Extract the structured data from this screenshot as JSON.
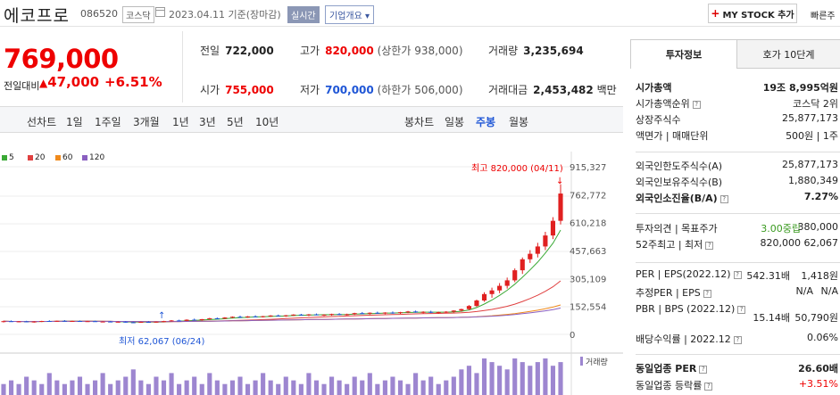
{
  "header": {
    "name": "에코프로",
    "code": "086520",
    "market": "코스닥",
    "date": "2023.04.11 기준(장마감)",
    "realtime": "실시간",
    "company_overview": "기업개요",
    "mystock": "MY STOCK 추가",
    "quick": "빠른주"
  },
  "price": {
    "current": "769,000",
    "change_label": "전일대비",
    "change": "47,000",
    "change_pct": "+6.51%",
    "prev_close_label": "전일",
    "prev_close": "722,000",
    "high_label": "고가",
    "high": "820,000",
    "upper_limit": "(상한가 938,000)",
    "volume_label": "거래량",
    "volume": "3,235,694",
    "open_label": "시가",
    "open": "755,000",
    "low_label": "저가",
    "low": "700,000",
    "lower_limit": "(하한가 506,000)",
    "amount_label": "거래대금",
    "amount": "2,453,482",
    "amount_unit": "백만"
  },
  "toolbar": {
    "line_chart": "선차트",
    "periods": [
      "1일",
      "1주일",
      "3개월",
      "1년",
      "3년",
      "5년",
      "10년"
    ],
    "candle_chart": "봉차트",
    "candle_periods": [
      "일봉",
      "주봉",
      "월봉"
    ],
    "candle_selected": 1
  },
  "right_panel": {
    "tab_active": "투자정보",
    "tab_inactive": "호가 10단계",
    "market_cap_label": "시가총액",
    "market_cap": "19조 8,995억원",
    "rank_label": "시가총액순위",
    "rank": "코스닥 2위",
    "shares_label": "상장주식수",
    "shares": "25,877,173",
    "par_label": "액면가 | 매매단위",
    "par": "500원 | 1주",
    "foreign_limit_label": "외국인한도주식수(A)",
    "foreign_limit": "25,877,173",
    "foreign_hold_label": "외국인보유주식수(B)",
    "foreign_hold": "1,880,349",
    "foreign_ratio_label": "외국인소진율(B/A)",
    "foreign_ratio": "7.27%",
    "opinion_label": "투자의견 | 목표주가",
    "opinion": "3.00중립",
    "target": "380,000",
    "w52_label": "52주최고 | 최저",
    "w52_high": "820,000",
    "w52_low": "62,067",
    "per_label": "PER | EPS(2022.12)",
    "per": "542.31배",
    "eps": "1,418원",
    "est_per_label": "추정PER | EPS",
    "est_per": "N/A",
    "est_eps": "N/A",
    "pbr_label": "PBR | BPS (2022.12)",
    "pbr": "15.14배",
    "bps": "50,790원",
    "dividend_label": "배당수익률 | 2022.12",
    "dividend": "0.06%",
    "industry_per_label": "동일업종 PER",
    "industry_per": "26.60배",
    "industry_change_label": "동일업종 등락률",
    "industry_change": "+3.51%"
  },
  "chart_data": {
    "type": "candlestick",
    "period": "weekly",
    "y_ticks": [
      "915,327",
      "762,772",
      "610,218",
      "457,663",
      "305,109",
      "152,554",
      "0"
    ],
    "ylim": [
      0,
      915327
    ],
    "ma_legend": [
      {
        "name": "5",
        "color": "#3aa935"
      },
      {
        "name": "20",
        "color": "#e04040"
      },
      {
        "name": "60",
        "color": "#f08a1c"
      },
      {
        "name": "120",
        "color": "#8a5fc0"
      }
    ],
    "max_label": "최고 820,000 (04/11)",
    "min_label": "최저 62,067 (06/24)",
    "volume_label": "거래량",
    "candles": [
      [
        70000,
        75000,
        65000,
        72000
      ],
      [
        72000,
        76000,
        68000,
        69000
      ],
      [
        69000,
        73000,
        66000,
        71000
      ],
      [
        71000,
        74000,
        67000,
        68000
      ],
      [
        68000,
        72000,
        64000,
        70000
      ],
      [
        70000,
        74000,
        67000,
        73000
      ],
      [
        73000,
        77000,
        69000,
        71000
      ],
      [
        71000,
        75000,
        68000,
        74000
      ],
      [
        74000,
        78000,
        70000,
        72000
      ],
      [
        72000,
        75000,
        69000,
        73000
      ],
      [
        73000,
        76000,
        70000,
        71000
      ],
      [
        71000,
        74000,
        68000,
        72000
      ],
      [
        72000,
        75000,
        68000,
        69000
      ],
      [
        69000,
        72000,
        66000,
        70000
      ],
      [
        70000,
        73000,
        67000,
        68000
      ],
      [
        68000,
        71000,
        65000,
        69000
      ],
      [
        69000,
        72000,
        64000,
        66000
      ],
      [
        66000,
        69000,
        62067,
        64000
      ],
      [
        64000,
        70000,
        63000,
        68000
      ],
      [
        68000,
        72000,
        65000,
        66000
      ],
      [
        66000,
        70000,
        64000,
        69000
      ],
      [
        69000,
        74000,
        67000,
        72000
      ],
      [
        72000,
        78000,
        70000,
        76000
      ],
      [
        76000,
        80000,
        72000,
        74000
      ],
      [
        74000,
        82000,
        72000,
        80000
      ],
      [
        80000,
        86000,
        76000,
        78000
      ],
      [
        78000,
        84000,
        75000,
        83000
      ],
      [
        83000,
        90000,
        80000,
        88000
      ],
      [
        88000,
        92000,
        83000,
        86000
      ],
      [
        86000,
        94000,
        84000,
        92000
      ],
      [
        92000,
        98000,
        88000,
        96000
      ],
      [
        96000,
        102000,
        90000,
        94000
      ],
      [
        94000,
        100000,
        90000,
        98000
      ],
      [
        98000,
        104000,
        93000,
        96000
      ],
      [
        96000,
        101000,
        92000,
        99000
      ],
      [
        99000,
        105000,
        95000,
        103000
      ],
      [
        103000,
        108000,
        98000,
        100000
      ],
      [
        100000,
        106000,
        96000,
        104000
      ],
      [
        104000,
        110000,
        100000,
        108000
      ],
      [
        108000,
        112000,
        102000,
        106000
      ],
      [
        106000,
        111000,
        100000,
        109000
      ],
      [
        109000,
        114000,
        104000,
        105000
      ],
      [
        105000,
        110000,
        100000,
        107000
      ],
      [
        107000,
        113000,
        102000,
        111000
      ],
      [
        111000,
        116000,
        105000,
        108000
      ],
      [
        108000,
        113000,
        103000,
        110000
      ],
      [
        110000,
        118000,
        106000,
        116000
      ],
      [
        116000,
        122000,
        110000,
        114000
      ],
      [
        114000,
        120000,
        108000,
        118000
      ],
      [
        118000,
        124000,
        112000,
        115000
      ],
      [
        115000,
        121000,
        110000,
        119000
      ],
      [
        119000,
        125000,
        113000,
        117000
      ],
      [
        117000,
        123000,
        112000,
        121000
      ],
      [
        121000,
        128000,
        116000,
        125000
      ],
      [
        125000,
        130000,
        118000,
        120000
      ],
      [
        120000,
        126000,
        114000,
        123000
      ],
      [
        123000,
        129000,
        116000,
        118000
      ],
      [
        118000,
        124000,
        112000,
        121000
      ],
      [
        121000,
        127000,
        115000,
        124000
      ],
      [
        124000,
        132000,
        118000,
        130000
      ],
      [
        130000,
        140000,
        124000,
        138000
      ],
      [
        138000,
        160000,
        132000,
        155000
      ],
      [
        155000,
        190000,
        150000,
        185000
      ],
      [
        185000,
        230000,
        178000,
        220000
      ],
      [
        220000,
        255000,
        200000,
        240000
      ],
      [
        240000,
        280000,
        225000,
        265000
      ],
      [
        265000,
        310000,
        250000,
        295000
      ],
      [
        295000,
        360000,
        285000,
        350000
      ],
      [
        350000,
        420000,
        330000,
        410000
      ],
      [
        410000,
        460000,
        390000,
        440000
      ],
      [
        440000,
        500000,
        420000,
        480000
      ],
      [
        480000,
        560000,
        460000,
        540000
      ],
      [
        540000,
        640000,
        520000,
        620000
      ],
      [
        620000,
        820000,
        600000,
        769000
      ]
    ],
    "volumes": [
      3,
      4,
      3,
      5,
      4,
      3,
      6,
      4,
      3,
      4,
      5,
      3,
      4,
      6,
      3,
      4,
      5,
      7,
      4,
      3,
      5,
      4,
      6,
      3,
      4,
      5,
      3,
      6,
      4,
      3,
      4,
      5,
      3,
      4,
      6,
      4,
      3,
      5,
      4,
      3,
      6,
      4,
      3,
      5,
      4,
      3,
      5,
      4,
      6,
      3,
      4,
      5,
      4,
      3,
      6,
      4,
      5,
      3,
      4,
      5,
      7,
      8,
      6,
      10,
      9,
      8,
      7,
      10,
      9,
      8,
      9,
      10,
      8,
      9
    ]
  }
}
